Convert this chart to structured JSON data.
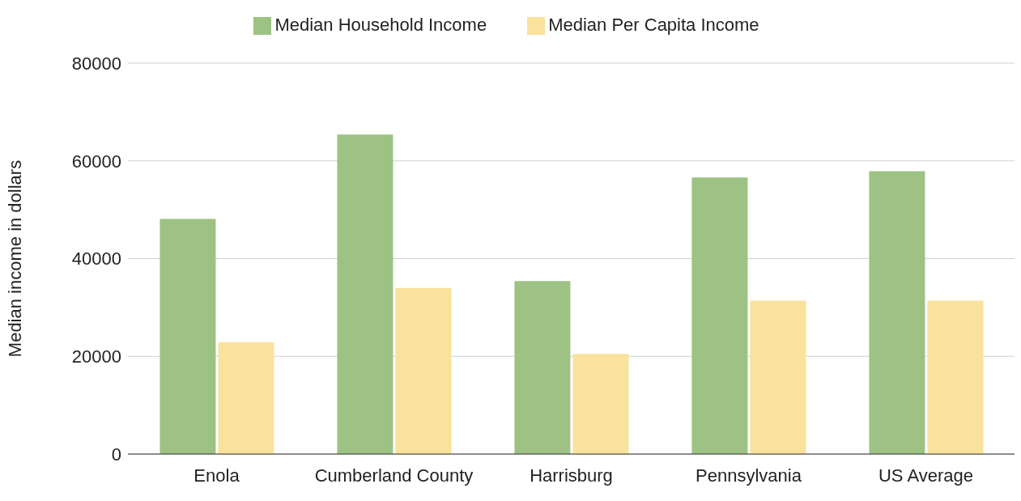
{
  "chart_data": {
    "type": "bar",
    "ylabel": "Median income in dollars",
    "categories": [
      "Enola",
      "Cumberland County",
      "Harrisburg",
      "Pennsylvania",
      "US Average"
    ],
    "series": [
      {
        "name": "Median Household Income",
        "color": "#9dc283",
        "values": [
          48100,
          65400,
          35400,
          56600,
          57900
        ]
      },
      {
        "name": "Median Per Capita Income",
        "color": "#f9e29c",
        "values": [
          22900,
          34000,
          20500,
          31400,
          31400
        ]
      }
    ],
    "ylim": [
      0,
      80000
    ],
    "yticks": [
      0,
      20000,
      40000,
      60000,
      80000
    ],
    "grid": "y",
    "legend": "top"
  }
}
